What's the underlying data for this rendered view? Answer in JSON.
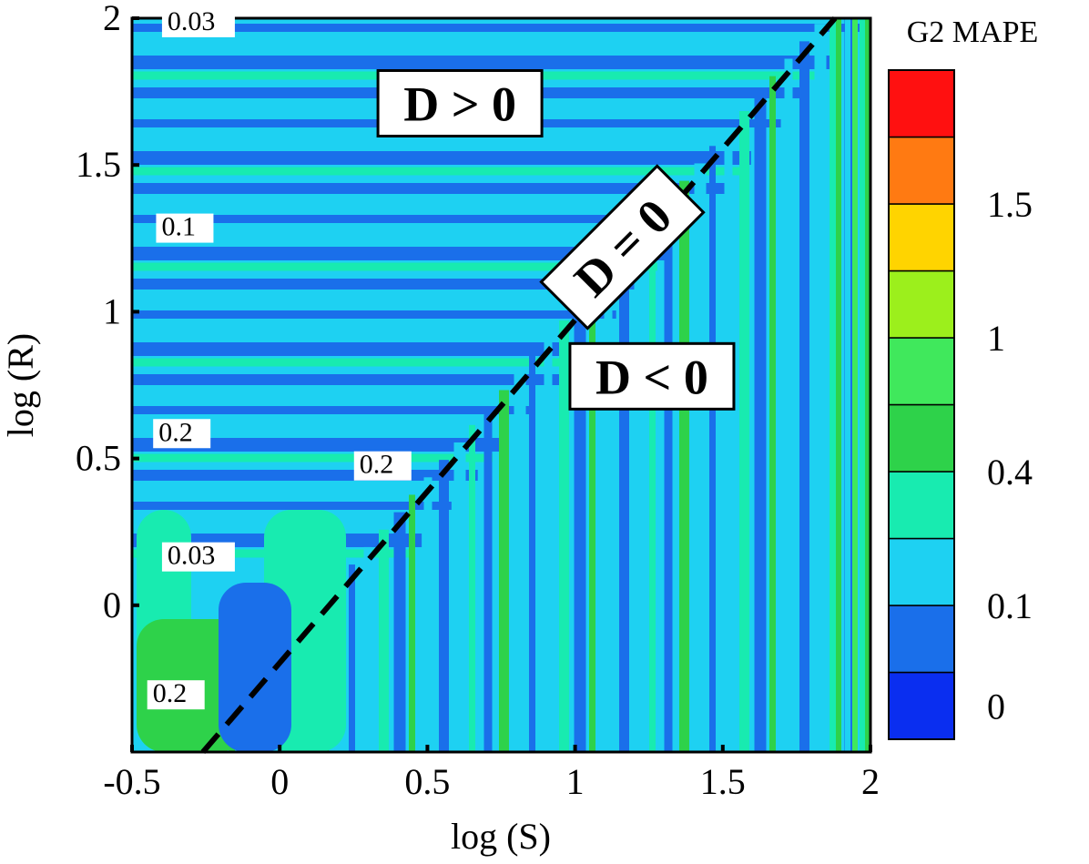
{
  "chart_data": {
    "type": "heatmap",
    "title": "",
    "xlabel": "log (S)",
    "ylabel": "log (R)",
    "xlim": [
      -0.5,
      2
    ],
    "ylim": [
      -0.5,
      2
    ],
    "x_ticks": [
      "-0.5",
      "0",
      "0.5",
      "1",
      "1.5",
      "2"
    ],
    "y_ticks": [
      "0",
      "0.5",
      "1",
      "1.5",
      "2"
    ],
    "colorbar": {
      "title": "G2 MAPE",
      "tick_labels": [
        "0",
        "0.1",
        "0.4",
        "1",
        "1.5"
      ],
      "levels": [
        0,
        0.03,
        0.1,
        0.2,
        0.4,
        0.6,
        1,
        1.2,
        1.5,
        1.6
      ],
      "colors": [
        "#0a2ef0",
        "#1a6fea",
        "#1ed1f2",
        "#18ebb0",
        "#2ed24a",
        "#40e85c",
        "#9cef1c",
        "#ffd400",
        "#ff7a12",
        "#ff1010"
      ]
    },
    "contour_labels": [
      {
        "text": "0.03",
        "x": -0.38,
        "y": 1.96
      },
      {
        "text": "0.1",
        "x": -0.4,
        "y": 1.26
      },
      {
        "text": "0.2",
        "x": -0.41,
        "y": 0.56
      },
      {
        "text": "0.2",
        "x": 0.27,
        "y": 0.45
      },
      {
        "text": "0.03",
        "x": -0.38,
        "y": 0.14
      },
      {
        "text": "0.2",
        "x": -0.43,
        "y": -0.33
      }
    ],
    "regions": [
      {
        "text": "D > 0",
        "x": 0.61,
        "y": 1.71
      },
      {
        "text": "D = 0",
        "x": 1.16,
        "y": 1.22
      },
      {
        "text": "D < 0",
        "x": 1.26,
        "y": 0.78
      }
    ],
    "boundary_line": {
      "name": "D = 0",
      "from": [
        -0.26,
        -0.5
      ],
      "to": [
        1.88,
        2.0
      ]
    }
  }
}
